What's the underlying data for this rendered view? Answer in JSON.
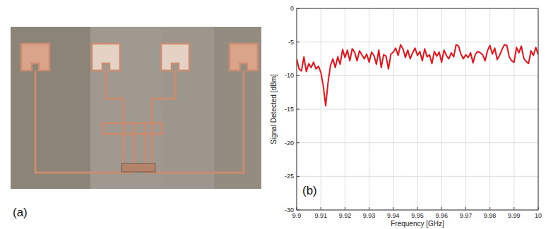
{
  "photo": {
    "label": "(a)"
  },
  "chart_data": {
    "type": "line",
    "annotation": "(b)",
    "x_label": "Frequency [GHz]",
    "y_label": "Signal Detected [dBm]",
    "x": [
      9.9,
      9.901,
      9.902,
      9.903,
      9.904,
      9.905,
      9.906,
      9.907,
      9.908,
      9.909,
      9.91,
      9.911,
      9.912,
      9.913,
      9.914,
      9.915,
      9.916,
      9.917,
      9.918,
      9.919,
      9.92,
      9.921,
      9.922,
      9.923,
      9.924,
      9.925,
      9.926,
      9.927,
      9.928,
      9.929,
      9.93,
      9.931,
      9.932,
      9.933,
      9.934,
      9.935,
      9.936,
      9.937,
      9.938,
      9.939,
      9.94,
      9.941,
      9.942,
      9.943,
      9.944,
      9.945,
      9.946,
      9.947,
      9.948,
      9.949,
      9.95,
      9.951,
      9.952,
      9.953,
      9.954,
      9.955,
      9.956,
      9.957,
      9.958,
      9.959,
      9.96,
      9.961,
      9.962,
      9.963,
      9.964,
      9.965,
      9.966,
      9.967,
      9.968,
      9.969,
      9.97,
      9.971,
      9.972,
      9.973,
      9.974,
      9.975,
      9.976,
      9.977,
      9.978,
      9.979,
      9.98,
      9.981,
      9.982,
      9.983,
      9.984,
      9.985,
      9.986,
      9.987,
      9.988,
      9.989,
      9.99,
      9.991,
      9.992,
      9.993,
      9.994,
      9.995,
      9.996,
      9.997,
      9.998,
      9.999,
      10.0
    ],
    "values": [
      -7.5,
      -9,
      -9.3,
      -7.2,
      -9.4,
      -8.2,
      -8.8,
      -8.0,
      -9.0,
      -8.6,
      -9.5,
      -11.5,
      -14.5,
      -11,
      -8.5,
      -7.5,
      -8.8,
      -7.2,
      -8.3,
      -6.1,
      -7.3,
      -6.2,
      -7.8,
      -6.0,
      -6.5,
      -7.8,
      -6.3,
      -6.9,
      -7.5,
      -6.8,
      -8.0,
      -6.5,
      -7.0,
      -8.3,
      -6.2,
      -8.8,
      -6.9,
      -7.1,
      -9.0,
      -6.8,
      -6.5,
      -5.9,
      -7.0,
      -5.4,
      -6.0,
      -7.3,
      -6.2,
      -7.5,
      -6.6,
      -5.9,
      -7.0,
      -6.4,
      -7.8,
      -6.0,
      -7.2,
      -6.9,
      -8.2,
      -6.4,
      -7.1,
      -6.5,
      -8.0,
      -6.2,
      -7.0,
      -7.5,
      -6.6,
      -7.2,
      -5.4,
      -5.6,
      -6.8,
      -7.5,
      -6.9,
      -7.3,
      -6.6,
      -8.1,
      -6.8,
      -6.4,
      -6.6,
      -6.9,
      -7.8,
      -6.3,
      -5.5,
      -6.8,
      -5.9,
      -7.6,
      -7.0,
      -6.1,
      -5.4,
      -5.5,
      -7.2,
      -7.8,
      -8.0,
      -5.8,
      -6.6,
      -5.6,
      -7.4,
      -7.9,
      -8.2,
      -6.3,
      -7.0,
      -5.8,
      -6.9
    ],
    "color": "#e8141a",
    "xlim": [
      9.9,
      10
    ],
    "xticks": [
      9.9,
      9.91,
      9.92,
      9.93,
      9.94,
      9.95,
      9.96,
      9.97,
      9.98,
      9.99,
      10
    ],
    "ylim": [
      -30,
      0
    ],
    "yticks": [
      -30,
      -25,
      -20,
      -15,
      -10,
      -5,
      0
    ],
    "grid": true
  }
}
